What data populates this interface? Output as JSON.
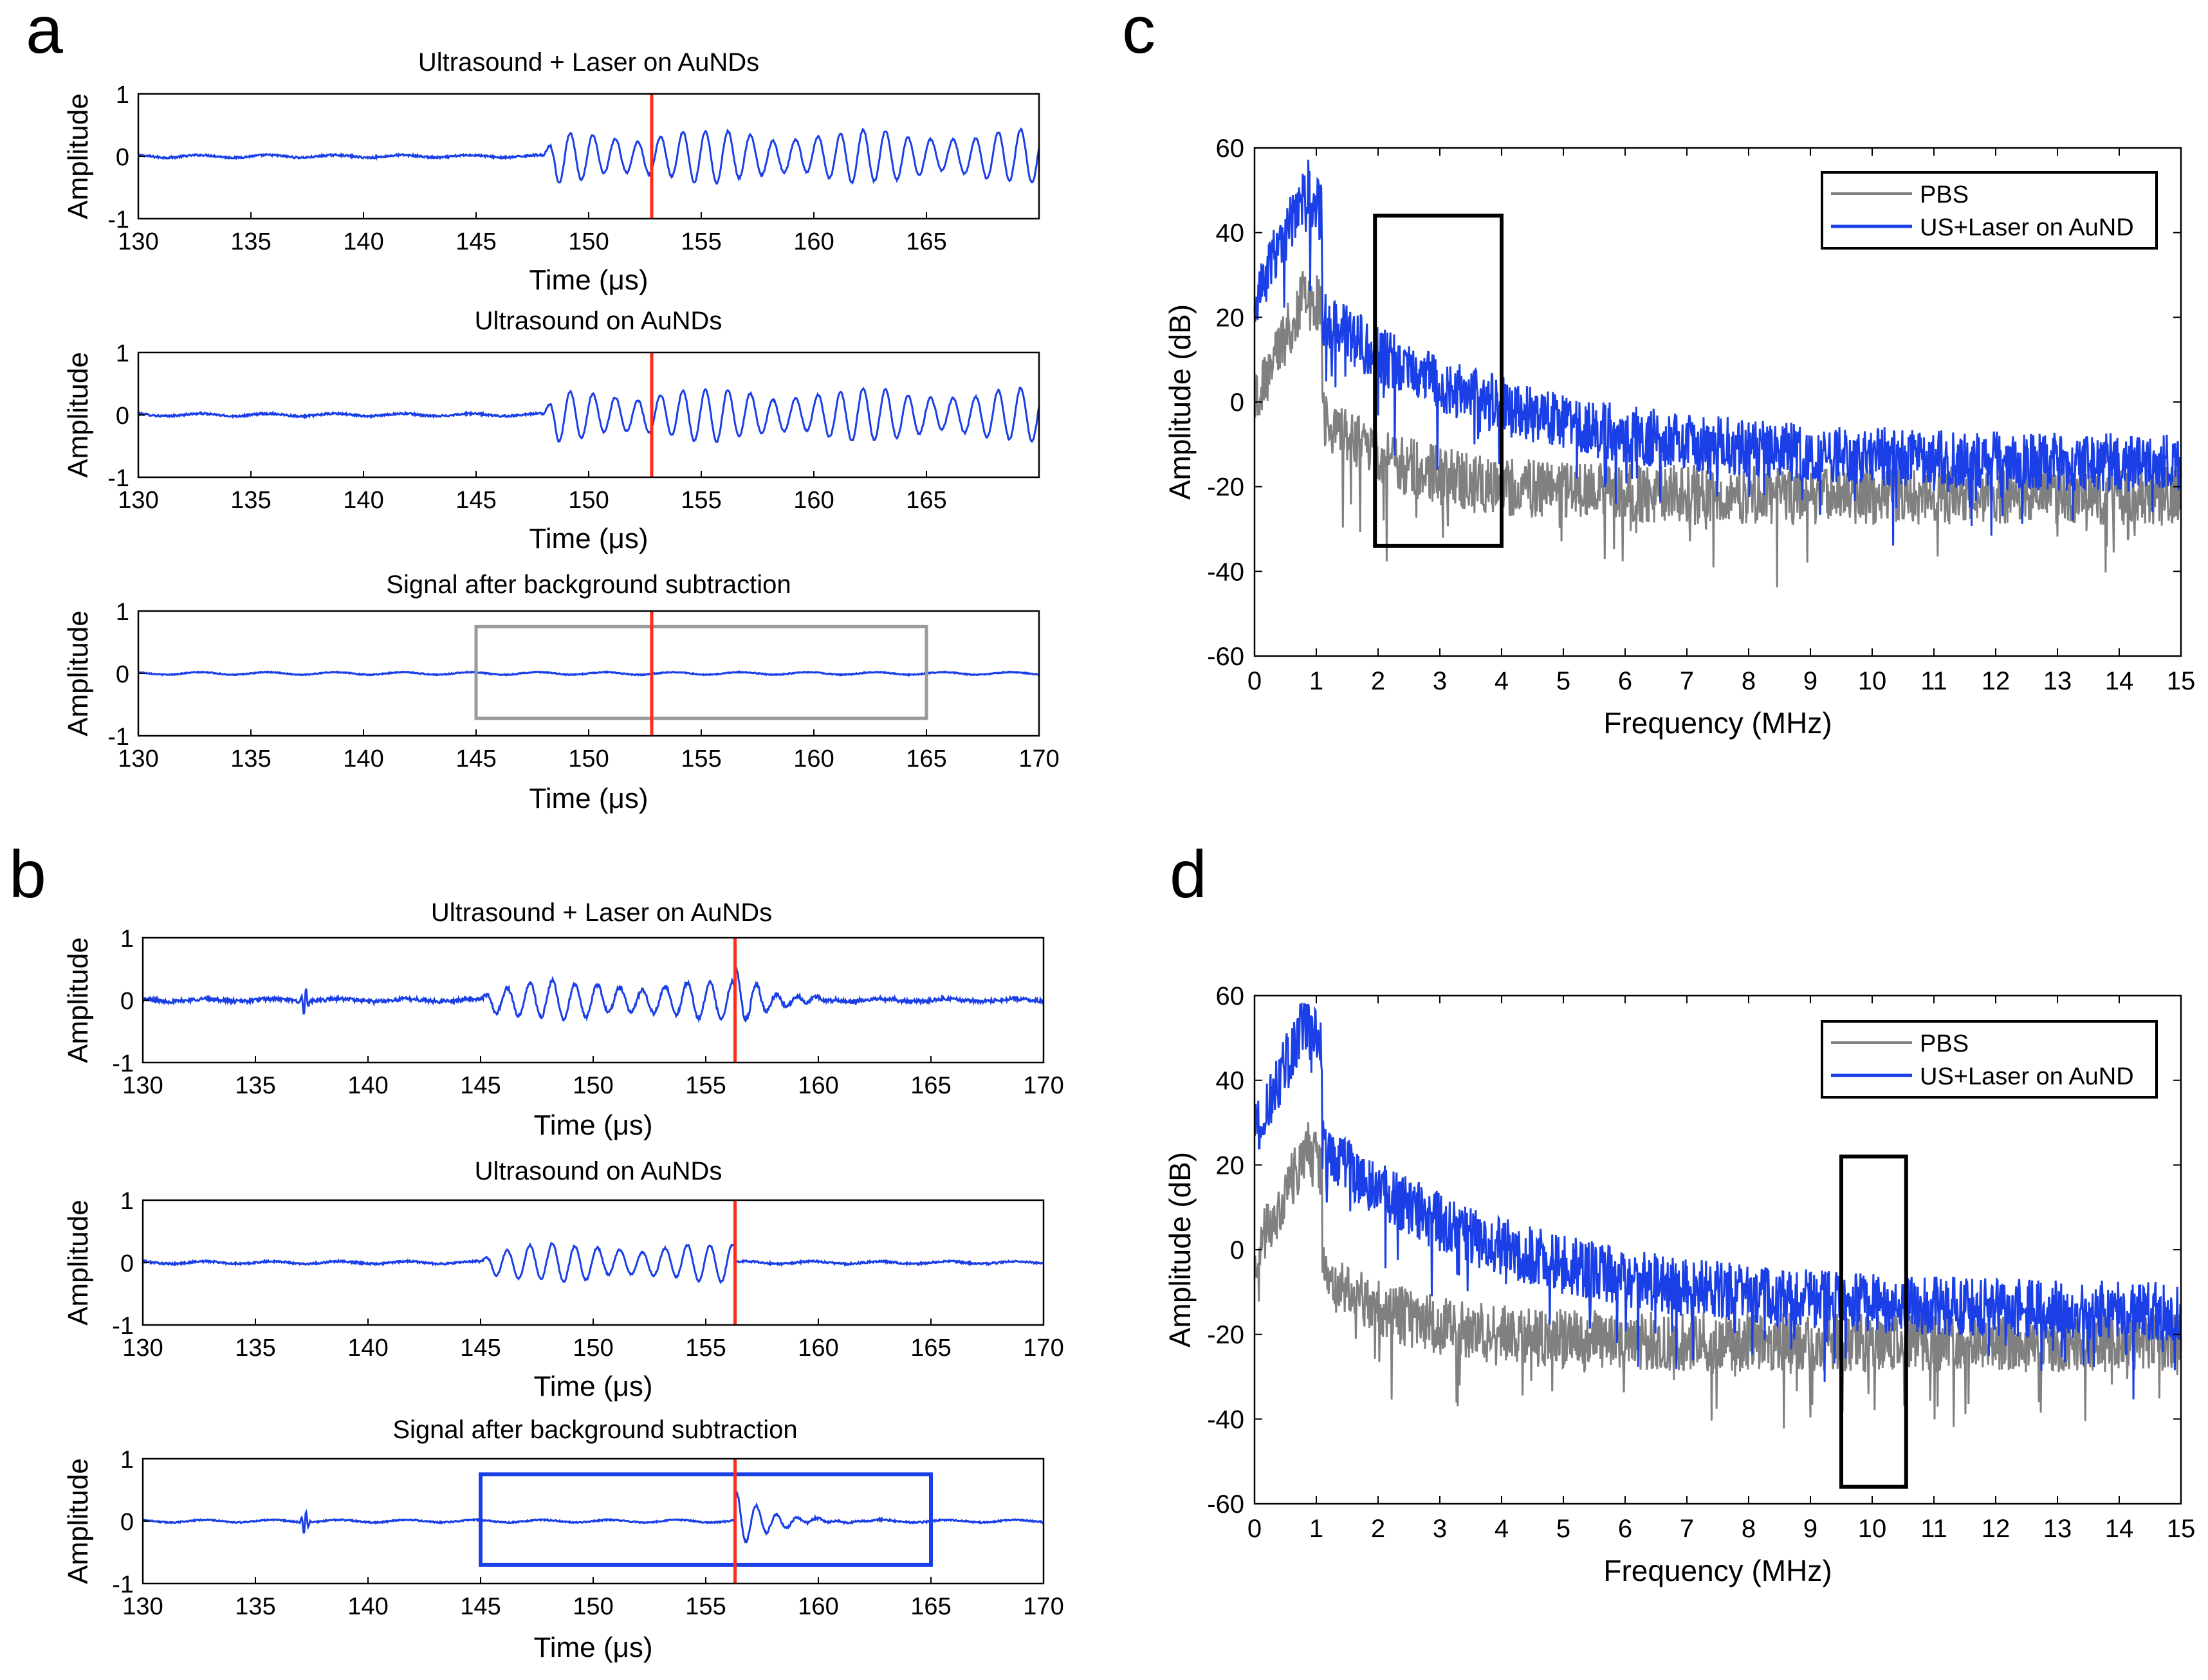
{
  "figure": {
    "panel_letters": [
      "a",
      "b",
      "c",
      "d"
    ]
  },
  "colors": {
    "signal": "#1a3fe6",
    "marker": "#ff2a1a",
    "pbs": "#808080",
    "gray_box": "#9a9a9a",
    "blue_box": "#1a3fe6",
    "black_box": "#000000"
  },
  "chart_data": [
    {
      "panel": "a",
      "type": "line",
      "title": "Ultrasound + Laser on AuNDs",
      "xlabel": "Time (μs)",
      "ylabel": "Amplitude",
      "xlim": [
        130,
        170
      ],
      "ylim": [
        -1,
        1
      ],
      "xticks": [
        130,
        135,
        140,
        145,
        150,
        155,
        160,
        165
      ],
      "yticks": [
        -1,
        0,
        1
      ],
      "marker_x": 152.8,
      "burst": [
        148,
        170
      ],
      "burst_amp": 0.42,
      "noise": 0.015,
      "spikes": [],
      "box": null
    },
    {
      "panel": "a",
      "type": "line",
      "title": "Ultrasound on AuNDs",
      "xlabel": "Time (μs)",
      "ylabel": "Amplitude",
      "xlim": [
        130,
        170
      ],
      "ylim": [
        -1,
        1
      ],
      "xticks": [
        130,
        135,
        140,
        145,
        150,
        155,
        160,
        165
      ],
      "yticks": [
        -1,
        0,
        1
      ],
      "marker_x": 152.8,
      "burst": [
        148,
        170
      ],
      "burst_amp": 0.42,
      "noise": 0.015,
      "spikes": [],
      "box": null
    },
    {
      "panel": "a",
      "type": "line",
      "title": "Signal after background subtraction",
      "xlabel": "Time (μs)",
      "ylabel": "Amplitude",
      "xlim": [
        130,
        170
      ],
      "ylim": [
        -1,
        1
      ],
      "xticks": [
        130,
        135,
        140,
        145,
        150,
        155,
        160,
        165,
        170
      ],
      "yticks": [
        -1,
        0,
        1
      ],
      "marker_x": 152.8,
      "burst": null,
      "burst_amp": 0,
      "noise": 0.008,
      "spikes": [],
      "box": {
        "x": [
          145,
          165
        ],
        "y": [
          -0.72,
          0.75
        ],
        "color": "gray"
      }
    },
    {
      "panel": "b",
      "type": "line",
      "title": "Ultrasound + Laser on AuNDs",
      "xlabel": "Time (μs)",
      "ylabel": "Amplitude",
      "xlim": [
        130,
        170
      ],
      "ylim": [
        -1,
        1
      ],
      "xticks": [
        130,
        135,
        140,
        145,
        150,
        155,
        160,
        165,
        170
      ],
      "yticks": [
        -1,
        0,
        1
      ],
      "marker_x": 156.3,
      "burst": [
        145,
        156.3
      ],
      "burst_amp": 0.3,
      "noise": 0.03,
      "spikes": [
        {
          "x": 137.2,
          "a": 0.22
        }
      ],
      "event": {
        "x": 156.3,
        "a": 0.5
      },
      "box": null
    },
    {
      "panel": "b",
      "type": "line",
      "title": "Ultrasound on AuNDs",
      "xlabel": "Time (μs)",
      "ylabel": "Amplitude",
      "xlim": [
        130,
        170
      ],
      "ylim": [
        -1,
        1
      ],
      "xticks": [
        130,
        135,
        140,
        145,
        150,
        155,
        160,
        165,
        170
      ],
      "yticks": [
        -1,
        0,
        1
      ],
      "marker_x": 156.3,
      "burst": [
        145,
        156.3
      ],
      "burst_amp": 0.3,
      "noise": 0.015,
      "spikes": [],
      "box": null
    },
    {
      "panel": "b",
      "type": "line",
      "title": "Signal after background subtraction",
      "xlabel": "Time (μs)",
      "ylabel": "Amplitude",
      "xlim": [
        130,
        170
      ],
      "ylim": [
        -1,
        1
      ],
      "xticks": [
        130,
        135,
        140,
        145,
        150,
        155,
        160,
        165,
        170
      ],
      "yticks": [
        -1,
        0,
        1
      ],
      "marker_x": 156.3,
      "burst": null,
      "burst_amp": 0,
      "noise": 0.01,
      "spikes": [
        {
          "x": 137.2,
          "a": 0.2
        }
      ],
      "event": {
        "x": 156.3,
        "a": 0.5
      },
      "box": {
        "x": [
          145,
          165
        ],
        "y": [
          -0.7,
          0.75
        ],
        "color": "blue"
      }
    },
    {
      "panel": "c",
      "type": "line",
      "xlabel": "Frequency (MHz)",
      "ylabel": "Amplitude (dB)",
      "xlim": [
        0,
        15
      ],
      "ylim": [
        -60,
        60
      ],
      "xticks": [
        0,
        1,
        2,
        3,
        4,
        5,
        6,
        7,
        8,
        9,
        10,
        11,
        12,
        13,
        14,
        15
      ],
      "yticks": [
        -60,
        -40,
        -20,
        0,
        20,
        40,
        60
      ],
      "legend": [
        "PBS",
        "US+Laser on AuND"
      ],
      "legend_position": "top-right",
      "series": [
        {
          "name": "PBS",
          "peak": 28,
          "tail": -22,
          "color": "gray"
        },
        {
          "name": "US+Laser on AuND",
          "peak": 52,
          "tail": -15,
          "color": "blue"
        }
      ],
      "box": {
        "x": [
          1.95,
          4.0
        ],
        "y": [
          -34,
          44
        ]
      }
    },
    {
      "panel": "d",
      "type": "line",
      "xlabel": "Frequency (MHz)",
      "ylabel": "Amplitude (dB)",
      "xlim": [
        0,
        15
      ],
      "ylim": [
        -60,
        60
      ],
      "xticks": [
        0,
        1,
        2,
        3,
        4,
        5,
        6,
        7,
        8,
        9,
        10,
        11,
        12,
        13,
        14,
        15
      ],
      "yticks": [
        -60,
        -40,
        -20,
        0,
        20,
        40,
        60
      ],
      "legend": [
        "PBS",
        "US+Laser on AuND"
      ],
      "legend_position": "top-right",
      "series": [
        {
          "name": "PBS",
          "peak": 26,
          "tail": -22,
          "color": "gray"
        },
        {
          "name": "US+Laser on AuND",
          "peak": 56,
          "tail": -15,
          "color": "blue"
        }
      ],
      "box": {
        "x": [
          9.5,
          10.55
        ],
        "y": [
          -56,
          22
        ]
      }
    }
  ]
}
